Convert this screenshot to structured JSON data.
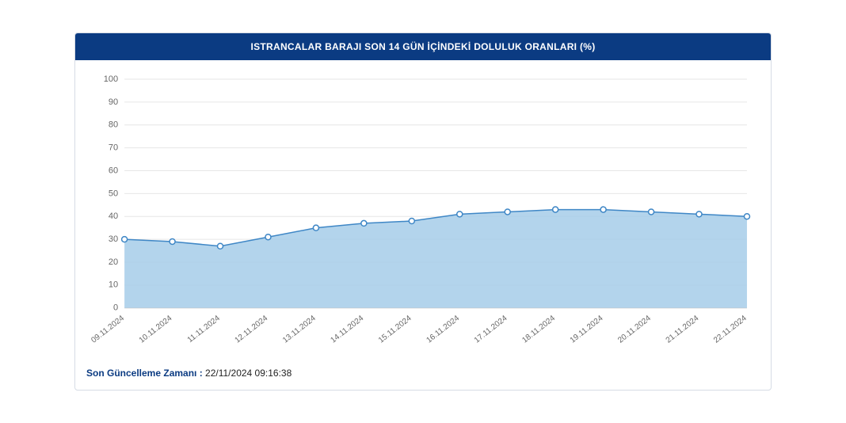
{
  "chart": {
    "type": "area",
    "title": "ISTRANCALAR BARAJI SON 14 GÜN İÇİNDEKİ DOLULUK ORANLARI (%)",
    "header_bg": "#0b3b82",
    "header_text_color": "#ffffff",
    "card_border_color": "#d6dce5",
    "background_color": "#ffffff",
    "grid_color": "#e6e6e6",
    "axis_color": "#cfcfcf",
    "area_fill_color": "#a6cde9",
    "area_fill_opacity": 0.85,
    "line_color": "#3f87c6",
    "line_width": 1.5,
    "marker_fill": "#ffffff",
    "marker_stroke": "#3f87c6",
    "marker_radius": 3.5,
    "ylim": [
      0,
      100
    ],
    "ytick_step": 10,
    "y_label_color": "#666666",
    "y_label_fontsize": 11,
    "x_label_color": "#666666",
    "x_label_fontsize": 10,
    "x_label_rotation": -38,
    "categories": [
      "09.11.2024",
      "10.11.2024",
      "11.11.2024",
      "12.11.2024",
      "13.11.2024",
      "14.11.2024",
      "15.11.2024",
      "16.11.2024",
      "17.11.2024",
      "18.11.2024",
      "19.11.2024",
      "20.11.2024",
      "21.11.2024",
      "22.11.2024"
    ],
    "values": [
      30,
      29,
      27,
      31,
      35,
      37,
      38,
      41,
      42,
      43,
      43,
      42,
      41,
      40
    ]
  },
  "footer": {
    "label": "Son Güncelleme Zamanı :",
    "value": "22/11/2024 09:16:38"
  }
}
